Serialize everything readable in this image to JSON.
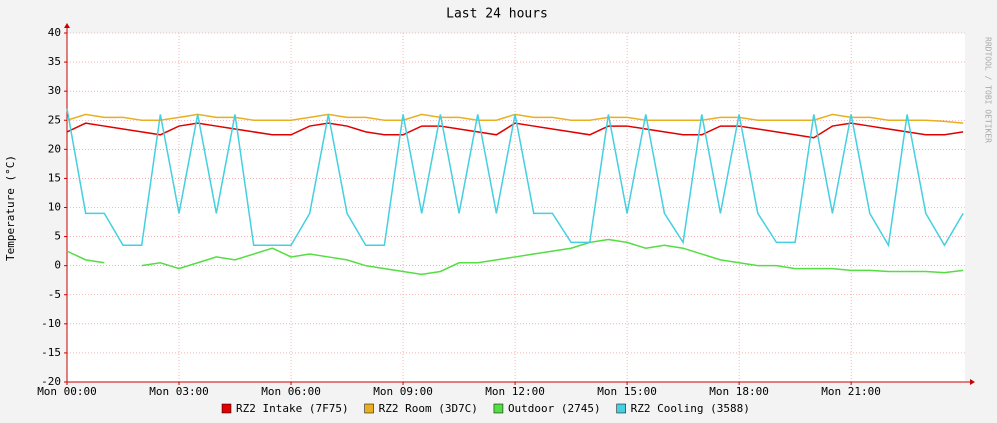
{
  "chart_data": {
    "type": "line",
    "title": "Last 24 hours",
    "y_label": "Temperature (°C)",
    "watermark": "RRDTOOL / TOBI OETIKER",
    "x": [
      0,
      0.5,
      1,
      1.5,
      2,
      2.5,
      3,
      3.5,
      4,
      4.5,
      5,
      5.5,
      6,
      6.5,
      7,
      7.5,
      8,
      8.5,
      9,
      9.5,
      10,
      10.5,
      11,
      11.5,
      12,
      12.5,
      13,
      13.5,
      14,
      14.5,
      15,
      15.5,
      16,
      16.5,
      17,
      17.5,
      18,
      18.5,
      19,
      19.5,
      20,
      20.5,
      21,
      21.5,
      22,
      22.5,
      23,
      23.5,
      24
    ],
    "xlim": [
      0,
      24.05
    ],
    "xticks": [
      {
        "value": 0,
        "label": "Mon 00:00"
      },
      {
        "value": 3,
        "label": "Mon 03:00"
      },
      {
        "value": 6,
        "label": "Mon 06:00"
      },
      {
        "value": 9,
        "label": "Mon 09:00"
      },
      {
        "value": 12,
        "label": "Mon 12:00"
      },
      {
        "value": 15,
        "label": "Mon 15:00"
      },
      {
        "value": 18,
        "label": "Mon 18:00"
      },
      {
        "value": 21,
        "label": "Mon 21:00"
      }
    ],
    "ylim": [
      -20,
      40
    ],
    "yticks": [
      -20,
      -15,
      -10,
      -5,
      0,
      5,
      10,
      15,
      20,
      25,
      30,
      35,
      40
    ],
    "grid": true,
    "legend": "bottom",
    "series": [
      {
        "name": "RZ2 Intake (7F75)",
        "color": "#e00000",
        "values": [
          23,
          24.5,
          24,
          23.5,
          23,
          22.5,
          24,
          24.5,
          24,
          23.5,
          23,
          22.5,
          22.5,
          24,
          24.5,
          24,
          23,
          22.5,
          22.5,
          24,
          24,
          23.5,
          23,
          22.5,
          24.5,
          24,
          23.5,
          23,
          22.5,
          24,
          24,
          23.5,
          23,
          22.5,
          22.5,
          24,
          24,
          23.5,
          23,
          22.5,
          22,
          24,
          24.5,
          24,
          23.5,
          23,
          22.5,
          22.5,
          23
        ]
      },
      {
        "name": "RZ2 Room (3D7C)",
        "color": "#e8b020",
        "values": [
          25,
          26,
          25.5,
          25.5,
          25,
          25,
          25.5,
          26,
          25.5,
          25.5,
          25,
          25,
          25,
          25.5,
          26,
          25.5,
          25.5,
          25,
          25,
          26,
          25.5,
          25.5,
          25,
          25,
          26,
          25.5,
          25.5,
          25,
          25,
          25.5,
          25.5,
          25,
          25,
          25,
          25,
          25.5,
          25.5,
          25,
          25,
          25,
          25,
          26,
          25.5,
          25.5,
          25,
          25,
          25,
          24.8,
          24.5
        ]
      },
      {
        "name": "Outdoor (2745)",
        "color": "#55dd44",
        "values": [
          2.5,
          1,
          0.5,
          null,
          0,
          0.5,
          -0.5,
          0.5,
          1.5,
          1,
          2,
          3,
          1.5,
          2,
          1.5,
          1,
          0,
          -0.5,
          -1,
          -1.5,
          -1,
          0.5,
          0.5,
          1,
          1.5,
          2,
          2.5,
          3,
          4,
          4.5,
          4,
          3,
          3.5,
          3,
          2,
          1,
          0.5,
          0,
          0,
          -0.5,
          -0.5,
          -0.5,
          -0.8,
          -0.8,
          -1,
          -1,
          -1,
          -1.2,
          -0.8
        ]
      },
      {
        "name": "RZ2 Cooling (3588)",
        "color": "#44d0e0",
        "values": [
          27,
          9,
          9,
          3.5,
          3.5,
          26,
          9,
          26,
          9,
          26,
          3.5,
          3.5,
          3.5,
          9,
          26,
          9,
          3.5,
          3.5,
          26,
          9,
          26,
          9,
          26,
          9,
          26,
          9,
          9,
          4,
          4,
          26,
          9,
          26,
          9,
          4,
          26,
          9,
          26,
          9,
          4,
          4,
          26,
          9,
          26,
          9,
          3.5,
          26,
          9,
          3.5,
          9
        ]
      }
    ]
  }
}
